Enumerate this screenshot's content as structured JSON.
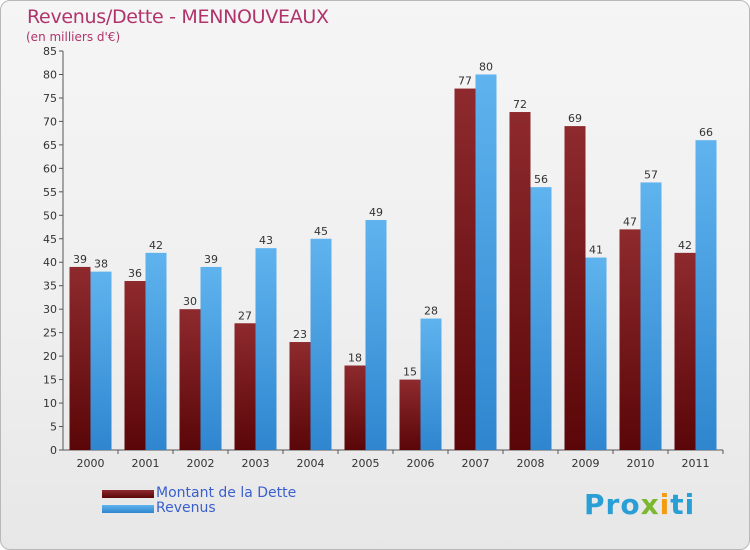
{
  "chart_data": {
    "type": "bar",
    "title": "Revenus/Dette - MENNOUVEAUX",
    "subtitle": "(en milliers d'€)",
    "categories": [
      "2000",
      "2001",
      "2002",
      "2003",
      "2004",
      "2005",
      "2006",
      "2007",
      "2008",
      "2009",
      "2010",
      "2011"
    ],
    "series": [
      {
        "name": "Montant de la Dette",
        "color": "#7a1418",
        "values": [
          39,
          36,
          30,
          27,
          23,
          18,
          15,
          77,
          72,
          69,
          47,
          42
        ]
      },
      {
        "name": "Revenus",
        "color": "#4da6e8",
        "values": [
          38,
          42,
          39,
          43,
          45,
          49,
          28,
          80,
          56,
          41,
          57,
          66
        ]
      }
    ],
    "yticks": [
      0,
      5,
      10,
      15,
      20,
      25,
      30,
      35,
      40,
      45,
      50,
      55,
      60,
      65,
      70,
      75,
      80,
      85
    ],
    "ylim": [
      0,
      85
    ],
    "grid": false,
    "legend_position": "bottom-left"
  },
  "logo": {
    "text": "Proxiti"
  }
}
